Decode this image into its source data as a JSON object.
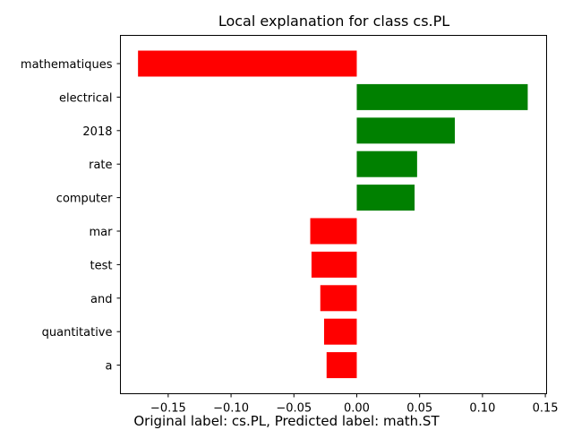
{
  "chart_data": {
    "type": "bar",
    "orientation": "horizontal",
    "title": "Local explanation for class cs.PL",
    "xlabel": "",
    "ylabel": "",
    "categories": [
      "mathematiques",
      "electrical",
      "2018",
      "rate",
      "computer",
      "mar",
      "test",
      "and",
      "quantitative",
      "a"
    ],
    "values": [
      -0.174,
      0.136,
      0.078,
      0.048,
      0.046,
      -0.037,
      -0.036,
      -0.029,
      -0.026,
      -0.024
    ],
    "xlim": [
      -0.188,
      0.151
    ],
    "xticks": [
      -0.15,
      -0.1,
      -0.05,
      0.0,
      0.05,
      0.1,
      0.15
    ],
    "xtick_labels": [
      "−0.15",
      "−0.10",
      "−0.05",
      "0.00",
      "0.05",
      "0.10",
      "0.15"
    ],
    "colors": {
      "positive": "#008000",
      "negative": "#ff0000"
    },
    "grid": false,
    "legend": "none"
  },
  "caption": "Original label: cs.PL, Predicted label: math.ST"
}
